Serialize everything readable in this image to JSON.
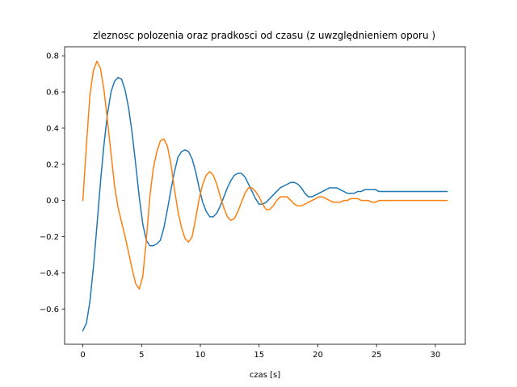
{
  "chart_data": {
    "type": "line",
    "title": "zleznosc polozenia oraz pradkosci od czasu (z uwzględnieniem oporu )",
    "xlabel": "czas [s]",
    "ylabel": "",
    "xlim": [
      -1.55,
      32.55
    ],
    "ylim": [
      -0.795,
      0.85
    ],
    "xticks": [
      0,
      5,
      10,
      15,
      20,
      25,
      30
    ],
    "yticks": [
      -0.6,
      -0.4,
      -0.2,
      0.0,
      0.2,
      0.4,
      0.6,
      0.8
    ],
    "grid": false,
    "legend": "none",
    "series": [
      {
        "color": "#1f77b4",
        "x": [
          0,
          0.3,
          0.6,
          0.9,
          1.2,
          1.5,
          1.8,
          2.1,
          2.4,
          2.7,
          3.0,
          3.3,
          3.6,
          3.9,
          4.2,
          4.5,
          4.8,
          5.1,
          5.4,
          5.7,
          6.0,
          6.3,
          6.6,
          6.9,
          7.2,
          7.5,
          7.8,
          8.1,
          8.4,
          8.7,
          9.0,
          9.3,
          9.6,
          9.9,
          10.2,
          10.5,
          10.8,
          11.1,
          11.4,
          11.7,
          12.0,
          12.3,
          12.6,
          12.9,
          13.2,
          13.5,
          13.8,
          14.1,
          14.4,
          14.7,
          15.0,
          15.3,
          15.6,
          15.9,
          16.2,
          16.5,
          16.8,
          17.1,
          17.4,
          17.7,
          18.0,
          18.3,
          18.6,
          18.9,
          19.2,
          19.5,
          19.8,
          20.1,
          20.4,
          20.7,
          21.0,
          21.3,
          21.6,
          21.9,
          22.2,
          22.5,
          22.8,
          23.1,
          23.4,
          23.7,
          24.0,
          24.3,
          24.6,
          24.9,
          25.2,
          25.5,
          25.8,
          26.1,
          26.4,
          26.7,
          27.0,
          27.3,
          27.6,
          27.9,
          28.2,
          28.5,
          28.8,
          29.1,
          29.4,
          29.7,
          30.0,
          30.3,
          30.6,
          31.0
        ],
        "y": [
          -0.72,
          -0.68,
          -0.56,
          -0.37,
          -0.14,
          0.1,
          0.31,
          0.48,
          0.6,
          0.66,
          0.68,
          0.67,
          0.61,
          0.51,
          0.37,
          0.2,
          0.02,
          -0.13,
          -0.22,
          -0.25,
          -0.25,
          -0.24,
          -0.22,
          -0.15,
          -0.05,
          0.06,
          0.16,
          0.24,
          0.27,
          0.28,
          0.27,
          0.23,
          0.16,
          0.07,
          -0.01,
          -0.06,
          -0.09,
          -0.09,
          -0.07,
          -0.03,
          0.02,
          0.07,
          0.11,
          0.14,
          0.15,
          0.15,
          0.13,
          0.09,
          0.05,
          0.01,
          -0.02,
          -0.02,
          -0.01,
          0.01,
          0.03,
          0.05,
          0.07,
          0.08,
          0.09,
          0.1,
          0.1,
          0.09,
          0.07,
          0.04,
          0.02,
          0.02,
          0.03,
          0.04,
          0.05,
          0.06,
          0.07,
          0.07,
          0.07,
          0.06,
          0.05,
          0.04,
          0.04,
          0.04,
          0.05,
          0.05,
          0.06,
          0.06,
          0.06,
          0.06,
          0.05,
          0.05,
          0.05,
          0.05,
          0.05,
          0.05,
          0.05,
          0.05,
          0.05,
          0.05,
          0.05,
          0.05,
          0.05,
          0.05,
          0.05,
          0.05,
          0.05,
          0.05,
          0.05,
          0.05
        ]
      },
      {
        "color": "#ff7f0e",
        "x": [
          0,
          0.3,
          0.6,
          0.9,
          1.2,
          1.5,
          1.8,
          2.1,
          2.4,
          2.7,
          3.0,
          3.3,
          3.6,
          3.9,
          4.2,
          4.5,
          4.8,
          5.1,
          5.4,
          5.7,
          6.0,
          6.3,
          6.6,
          6.9,
          7.2,
          7.5,
          7.8,
          8.1,
          8.4,
          8.7,
          9.0,
          9.3,
          9.6,
          9.9,
          10.2,
          10.5,
          10.8,
          11.1,
          11.4,
          11.7,
          12.0,
          12.3,
          12.6,
          12.9,
          13.2,
          13.5,
          13.8,
          14.1,
          14.4,
          14.7,
          15.0,
          15.3,
          15.6,
          15.9,
          16.2,
          16.5,
          16.8,
          17.1,
          17.4,
          17.7,
          18.0,
          18.3,
          18.6,
          18.9,
          19.2,
          19.5,
          19.8,
          20.1,
          20.4,
          20.7,
          21.0,
          21.3,
          21.6,
          21.9,
          22.2,
          22.5,
          22.8,
          23.1,
          23.4,
          23.7,
          24.0,
          24.3,
          24.6,
          24.9,
          25.2,
          25.5,
          25.8,
          26.1,
          26.4,
          26.7,
          27.0,
          27.3,
          27.6,
          27.9,
          28.2,
          28.5,
          28.8,
          29.1,
          29.4,
          29.7,
          30.0,
          30.3,
          30.6,
          31.0
        ],
        "y": [
          0.0,
          0.3,
          0.58,
          0.72,
          0.77,
          0.73,
          0.61,
          0.44,
          0.26,
          0.08,
          -0.04,
          -0.12,
          -0.2,
          -0.29,
          -0.38,
          -0.46,
          -0.49,
          -0.42,
          -0.22,
          0.02,
          0.18,
          0.27,
          0.33,
          0.34,
          0.3,
          0.2,
          0.06,
          -0.06,
          -0.15,
          -0.21,
          -0.23,
          -0.2,
          -0.1,
          0.01,
          0.09,
          0.14,
          0.16,
          0.14,
          0.09,
          0.02,
          -0.04,
          -0.09,
          -0.11,
          -0.1,
          -0.06,
          -0.01,
          0.04,
          0.07,
          0.07,
          0.05,
          0.02,
          -0.02,
          -0.05,
          -0.05,
          -0.03,
          0.0,
          0.02,
          0.02,
          0.02,
          0.0,
          -0.02,
          -0.03,
          -0.03,
          -0.02,
          -0.01,
          0.0,
          0.01,
          0.02,
          0.02,
          0.01,
          0.0,
          -0.01,
          -0.01,
          -0.01,
          0.0,
          0.0,
          0.01,
          0.01,
          0.01,
          0.0,
          0.0,
          0.0,
          -0.01,
          -0.01,
          0.0,
          0.0,
          0.0,
          0.0,
          0.0,
          0.0,
          0.0,
          0.0,
          0.0,
          0.0,
          0.0,
          0.0,
          0.0,
          0.0,
          0.0,
          0.0,
          0.0,
          0.0,
          0.0,
          0.0
        ]
      }
    ]
  }
}
